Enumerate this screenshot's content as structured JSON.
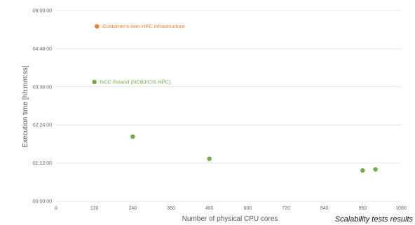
{
  "caption": "Scalability tests results",
  "chart_data": {
    "type": "scatter",
    "xlabel": "Number of physical CPU cores",
    "ylabel": "Execution time [hh:mm:ss]",
    "xlim": [
      0,
      1080
    ],
    "ylim": [
      "00:00:00",
      "06:00:00"
    ],
    "x_ticks": [
      "0",
      "120",
      "240",
      "360",
      "480",
      "600",
      "720",
      "840",
      "960",
      "1080"
    ],
    "y_ticks": [
      "00:00:00",
      "01:12:00",
      "02:24:00",
      "03:36:00",
      "04:48:00",
      "06:00:00"
    ],
    "grid": {
      "horizontal": true,
      "vertical": false
    },
    "series": [
      {
        "name": "Customer's own HPC infrastructure",
        "color": "#ED7D31",
        "points": [
          {
            "x": 128,
            "y": "05:30:00"
          }
        ]
      },
      {
        "name": "NCC Poland (NCBJ/CIS HPC)",
        "color": "#70AD47",
        "points": [
          {
            "x": 120,
            "y": "03:45:00"
          },
          {
            "x": 240,
            "y": "02:02:00"
          },
          {
            "x": 480,
            "y": "01:20:00"
          },
          {
            "x": 960,
            "y": "00:58:00"
          },
          {
            "x": 1000,
            "y": "01:00:00"
          }
        ]
      }
    ]
  }
}
